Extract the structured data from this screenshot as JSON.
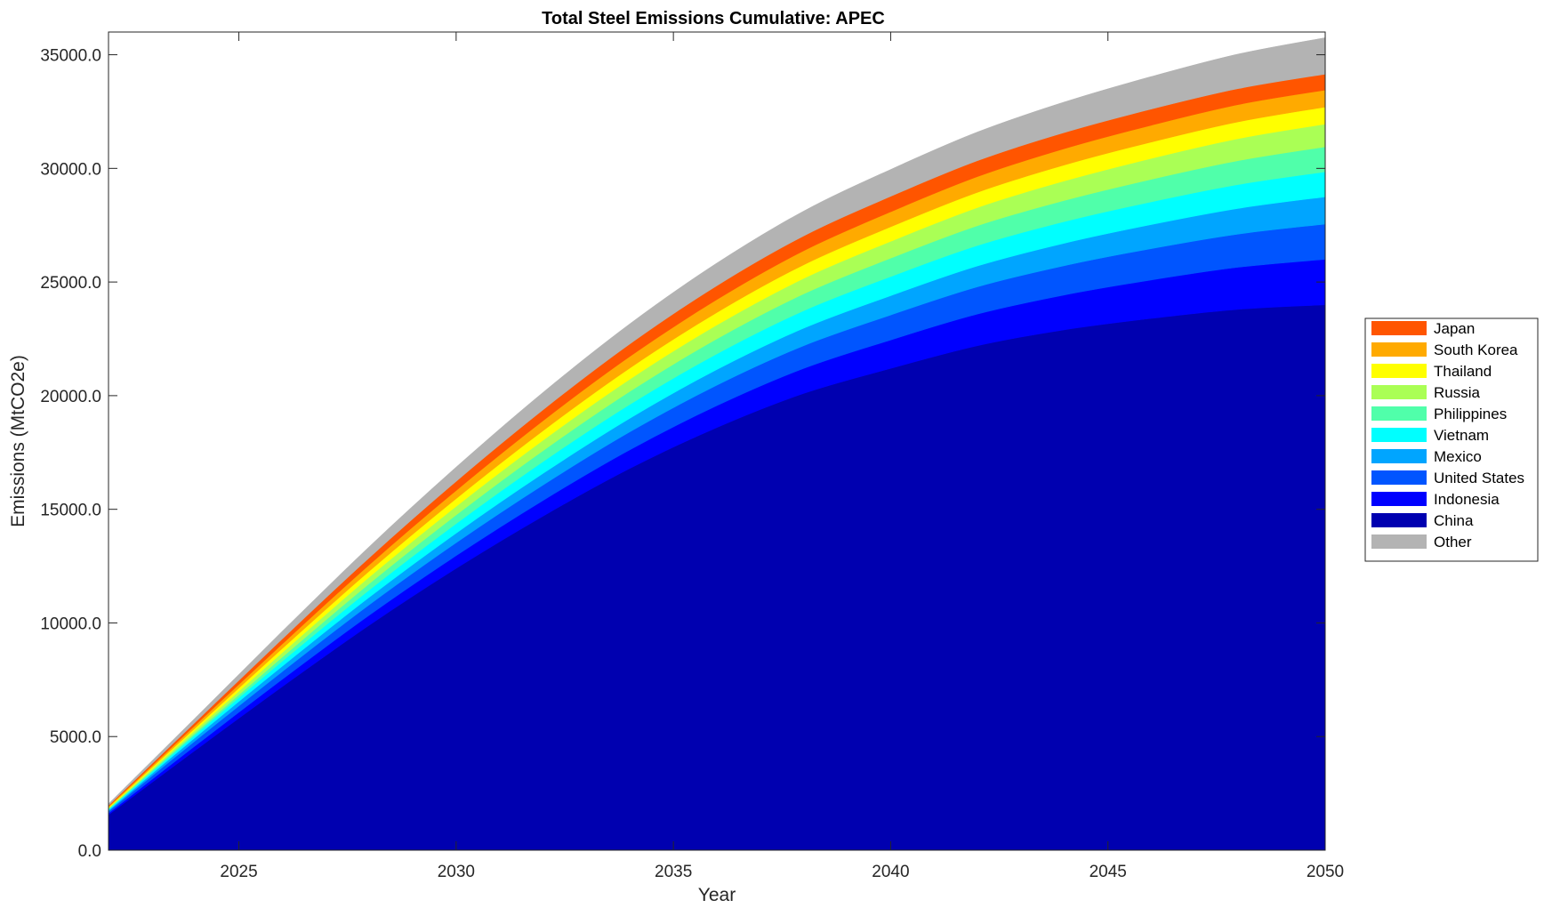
{
  "chart_data": {
    "type": "area",
    "stacked": true,
    "title": "Total Steel Emissions Cumulative: APEC",
    "xlabel": "Year",
    "ylabel": "Emissions (MtCO2e)",
    "xlim": [
      2022,
      2050
    ],
    "ylim": [
      0,
      36000
    ],
    "x_ticks": [
      2025,
      2030,
      2035,
      2040,
      2045,
      2050
    ],
    "x_tick_labels": [
      "2025",
      "2030",
      "2035",
      "2040",
      "2045",
      "2050"
    ],
    "y_ticks": [
      0,
      5000,
      10000,
      15000,
      20000,
      25000,
      30000,
      35000
    ],
    "y_tick_labels": [
      "0.0",
      "5000.0",
      "10000.0",
      "15000.0",
      "20000.0",
      "25000.0",
      "30000.0",
      "35000.0"
    ],
    "legend_position": "outside right",
    "grid": false,
    "x": [
      2022,
      2024,
      2026,
      2028,
      2030,
      2032,
      2034,
      2036,
      2038,
      2040,
      2042,
      2044,
      2046,
      2048,
      2050
    ],
    "series": [
      {
        "name": "China",
        "color": "#0000B0",
        "values": [
          1560,
          4400,
          7200,
          9900,
          12400,
          14700,
          16800,
          18600,
          20100,
          21200,
          22200,
          22900,
          23400,
          23800,
          24000
        ]
      },
      {
        "name": "Indonesia",
        "color": "#0000FF",
        "values": [
          70,
          200,
          320,
          440,
          560,
          690,
          820,
          960,
          1100,
          1250,
          1390,
          1530,
          1690,
          1850,
          2000
        ]
      },
      {
        "name": "United States",
        "color": "#0055FF",
        "values": [
          80,
          220,
          340,
          460,
          570,
          680,
          790,
          900,
          1000,
          1100,
          1200,
          1290,
          1380,
          1460,
          1550
        ]
      },
      {
        "name": "Mexico",
        "color": "#00A5FF",
        "values": [
          50,
          150,
          240,
          330,
          420,
          510,
          600,
          690,
          770,
          850,
          920,
          990,
          1060,
          1130,
          1200
        ]
      },
      {
        "name": "Vietnam",
        "color": "#00FFFF",
        "values": [
          40,
          120,
          220,
          320,
          420,
          520,
          610,
          690,
          770,
          840,
          900,
          950,
          1000,
          1050,
          1100
        ]
      },
      {
        "name": "Philippines",
        "color": "#50FFAA",
        "values": [
          25,
          90,
          180,
          280,
          380,
          480,
          570,
          660,
          740,
          810,
          870,
          930,
          990,
          1050,
          1100
        ]
      },
      {
        "name": "Russia",
        "color": "#AAFF55",
        "values": [
          35,
          110,
          200,
          290,
          380,
          460,
          540,
          610,
          680,
          740,
          800,
          860,
          920,
          970,
          1000
        ]
      },
      {
        "name": "Thailand",
        "color": "#FFFF00",
        "values": [
          30,
          100,
          180,
          260,
          340,
          420,
          490,
          550,
          600,
          640,
          670,
          700,
          720,
          740,
          750
        ]
      },
      {
        "name": "South Korea",
        "color": "#FFAA00",
        "values": [
          40,
          120,
          200,
          280,
          360,
          440,
          510,
          570,
          620,
          660,
          690,
          720,
          740,
          760,
          750
        ]
      },
      {
        "name": "Japan",
        "color": "#FF5500",
        "values": [
          45,
          130,
          220,
          310,
          400,
          480,
          550,
          610,
          650,
          680,
          700,
          710,
          710,
          700,
          700
        ]
      },
      {
        "name": "Other",
        "color": "#B3B3B3",
        "values": [
          60,
          180,
          330,
          480,
          620,
          760,
          880,
          990,
          1090,
          1180,
          1260,
          1340,
          1430,
          1520,
          1600
        ]
      }
    ],
    "legend_order": [
      "Japan",
      "South Korea",
      "Thailand",
      "Russia",
      "Philippines",
      "Vietnam",
      "Mexico",
      "United States",
      "Indonesia",
      "China",
      "Other"
    ]
  }
}
